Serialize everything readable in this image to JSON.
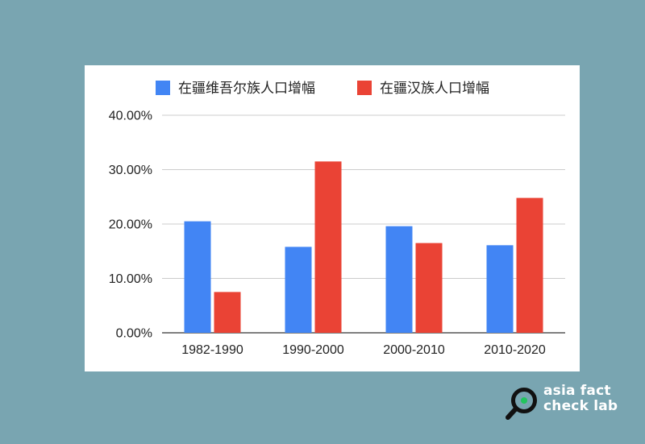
{
  "chart_data": {
    "type": "bar",
    "categories": [
      "1982-1990",
      "1990-2000",
      "2000-2010",
      "2010-2020"
    ],
    "series": [
      {
        "name": "在疆维吾尔族人口增幅",
        "values": [
          20.5,
          15.8,
          19.6,
          16.1
        ],
        "color": "#4285f4"
      },
      {
        "name": "在疆汉族人口增幅",
        "values": [
          7.5,
          31.5,
          16.5,
          24.8
        ],
        "color": "#ea4335"
      }
    ],
    "ylim": [
      0,
      40
    ],
    "yticks": [
      0,
      10,
      20,
      30,
      40
    ],
    "ytick_labels": [
      "0.00%",
      "10.00%",
      "20.00%",
      "30.00%",
      "40.00%"
    ],
    "grid": true,
    "legend_position": "top"
  },
  "brand": {
    "line1": "asia fact",
    "line2": "check lab",
    "icon": "magnifier-icon",
    "text_color": "#ffffff",
    "icon_accent": "#22c55e"
  }
}
